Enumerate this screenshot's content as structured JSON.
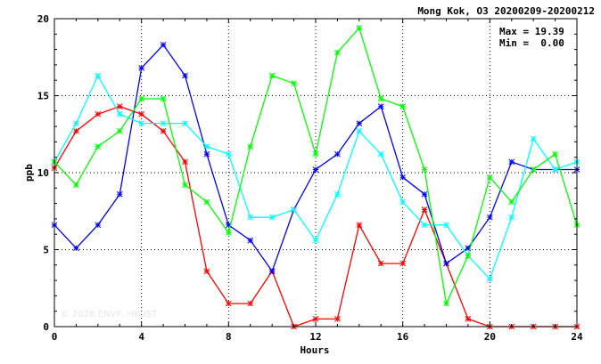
{
  "chart_data": {
    "type": "line",
    "title": "Mong Kok, O3 20200209-20200212",
    "xlabel": "Hours",
    "ylabel": "ppb",
    "xlim": [
      0,
      24
    ],
    "ylim": [
      0,
      20
    ],
    "x_ticks": [
      0,
      4,
      8,
      12,
      16,
      20,
      24
    ],
    "y_ticks": [
      0,
      5,
      10,
      15,
      20
    ],
    "grid": true,
    "stats": {
      "max_label": "Max = 19.39",
      "min_label": "Min =  0.00"
    },
    "watermark": "© 2026 ENVF, HKUST",
    "series": [
      {
        "color": "#ff0000",
        "x": [
          0,
          1,
          2,
          3,
          4,
          5,
          6,
          7,
          8,
          9,
          10,
          11,
          12,
          13,
          14,
          15,
          16,
          17,
          18,
          19,
          20,
          21,
          22,
          23,
          24
        ],
        "values": [
          10.3,
          12.7,
          13.8,
          14.3,
          13.8,
          12.7,
          10.7,
          3.6,
          1.5,
          1.5,
          3.6,
          0.0,
          0.5,
          0.5,
          6.6,
          4.1,
          4.1,
          7.6,
          4.1,
          0.5,
          0.0,
          0.0,
          0.0,
          0.0,
          0.0
        ]
      },
      {
        "color": "#0000ff",
        "x": [
          0,
          1,
          2,
          3,
          4,
          5,
          6,
          7,
          8,
          9,
          10,
          11,
          12,
          13,
          14,
          15,
          16,
          17,
          18,
          19,
          20,
          21,
          22,
          23,
          24
        ],
        "values": [
          6.6,
          5.1,
          6.6,
          8.6,
          16.8,
          18.3,
          16.3,
          11.2,
          6.6,
          5.6,
          3.6,
          7.6,
          10.2,
          11.2,
          13.2,
          14.3,
          9.7,
          8.6,
          4.1,
          5.1,
          7.1,
          10.7,
          10.2,
          10.2,
          10.2
        ]
      },
      {
        "color": "#00ffff",
        "x": [
          0,
          1,
          2,
          3,
          4,
          5,
          6,
          7,
          8,
          9,
          10,
          11,
          12,
          13,
          14,
          15,
          16,
          17,
          18,
          19,
          20,
          21,
          22,
          23,
          24
        ],
        "values": [
          10.7,
          13.2,
          16.3,
          13.8,
          13.2,
          13.2,
          13.2,
          11.7,
          11.2,
          7.1,
          7.1,
          7.6,
          5.6,
          8.6,
          12.7,
          11.2,
          8.1,
          6.6,
          6.6,
          4.6,
          3.1,
          7.1,
          12.2,
          10.2,
          10.7
        ]
      },
      {
        "color": "#00ff00",
        "x": [
          0,
          1,
          2,
          3,
          4,
          5,
          6,
          7,
          8,
          9,
          10,
          11,
          12,
          13,
          14,
          15,
          16,
          17,
          18,
          19,
          20,
          21,
          22,
          23,
          24
        ],
        "values": [
          10.7,
          9.2,
          11.7,
          12.7,
          14.8,
          14.8,
          9.2,
          8.1,
          6.1,
          11.7,
          16.3,
          15.8,
          11.2,
          17.8,
          19.4,
          14.8,
          14.3,
          10.2,
          1.5,
          4.6,
          9.7,
          8.1,
          10.2,
          11.2,
          6.6
        ]
      }
    ]
  }
}
